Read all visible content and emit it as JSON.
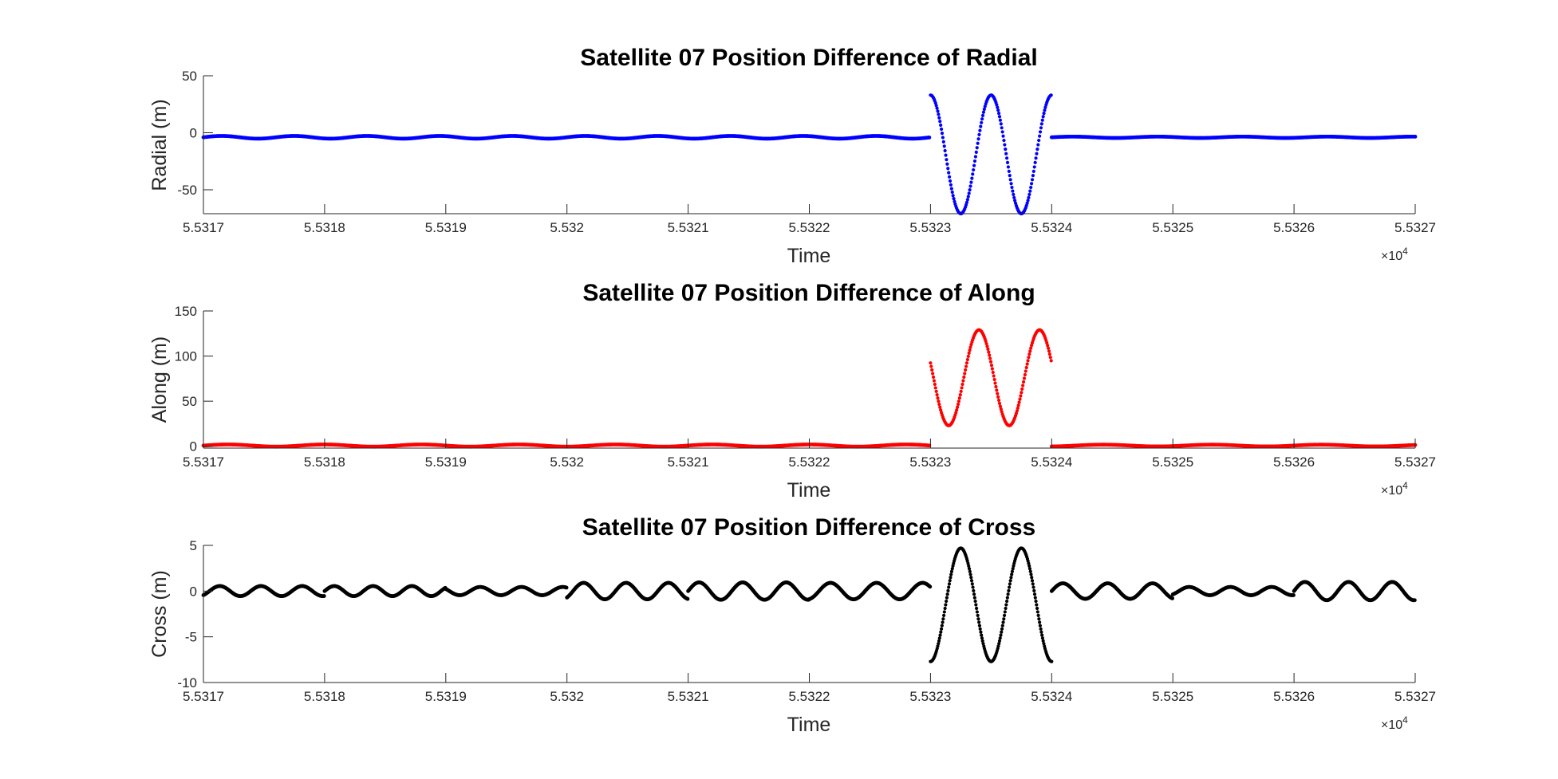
{
  "figure": {
    "background": "#ffffff",
    "axis_color": "#262626"
  },
  "chart_data": [
    {
      "type": "scatter",
      "title": "Satellite 07 Position Difference of Radial",
      "xlabel": "Time",
      "ylabel": "Radial (m)",
      "xlim": [
        55317,
        55327
      ],
      "ylim": [
        -71,
        50
      ],
      "x_tick_values": [
        55317,
        55318,
        55319,
        55320,
        55321,
        55322,
        55323,
        55324,
        55325,
        55326,
        55327
      ],
      "x_tick_labels": [
        "5.5317",
        "5.5318",
        "5.5319",
        "5.532",
        "5.5321",
        "5.5322",
        "5.5323",
        "5.5324",
        "5.5325",
        "5.5326",
        "5.5327"
      ],
      "y_tick_values": [
        -50,
        0,
        50
      ],
      "y_tick_labels": [
        "-50",
        "0",
        "50"
      ],
      "x_exponent_label": "×10",
      "x_exponent_power": "4",
      "color": "#0000ff",
      "series": [
        {
          "name": "before-gap",
          "x_range": [
            55317,
            55323
          ],
          "step": 0.01,
          "shape": "flat",
          "base": -4,
          "amp": 1.2,
          "period": 0.6
        },
        {
          "name": "anomaly",
          "x_range": [
            55323,
            55324
          ],
          "step": 0.006,
          "shape": "cosine",
          "center": -19,
          "amp": 52,
          "period": 0.5,
          "phase_x": 55323
        },
        {
          "name": "after-gap",
          "x_range": [
            55324,
            55327
          ],
          "step": 0.01,
          "shape": "flat",
          "base": -4,
          "amp": 0.6,
          "period": 0.7
        }
      ]
    },
    {
      "type": "scatter",
      "title": "Satellite 07 Position Difference of Along",
      "xlabel": "Time",
      "ylabel": "Along (m)",
      "xlim": [
        55317,
        55327
      ],
      "ylim": [
        -2,
        150
      ],
      "x_tick_values": [
        55317,
        55318,
        55319,
        55320,
        55321,
        55322,
        55323,
        55324,
        55325,
        55326,
        55327
      ],
      "x_tick_labels": [
        "5.5317",
        "5.5318",
        "5.5319",
        "5.532",
        "5.5321",
        "5.5322",
        "5.5323",
        "5.5324",
        "5.5325",
        "5.5326",
        "5.5327"
      ],
      "y_tick_values": [
        0,
        50,
        100,
        150
      ],
      "y_tick_labels": [
        "0",
        "50",
        "100",
        "150"
      ],
      "x_exponent_label": "×10",
      "x_exponent_power": "4",
      "color": "#ff0000",
      "series": [
        {
          "name": "before-gap",
          "x_range": [
            55317,
            55323
          ],
          "step": 0.01,
          "shape": "flat",
          "base": 0.8,
          "amp": 1.2,
          "period": 0.8
        },
        {
          "name": "anomaly",
          "x_range": [
            55323,
            55324
          ],
          "step": 0.006,
          "shape": "cosine-neg",
          "center": 76,
          "amp": 53,
          "period": 0.5,
          "phase_x": 55323.15
        },
        {
          "name": "after-gap",
          "x_range": [
            55324,
            55327
          ],
          "step": 0.01,
          "shape": "flat",
          "base": 0.8,
          "amp": 1.0,
          "period": 0.9
        }
      ]
    },
    {
      "type": "scatter",
      "title": "Satellite 07 Position Difference of Cross",
      "xlabel": "Time",
      "ylabel": "Cross (m)",
      "xlim": [
        55317,
        55327
      ],
      "ylim": [
        -10,
        5
      ],
      "x_tick_values": [
        55317,
        55318,
        55319,
        55320,
        55321,
        55322,
        55323,
        55324,
        55325,
        55326,
        55327
      ],
      "x_tick_labels": [
        "5.5317",
        "5.5318",
        "5.5319",
        "5.532",
        "5.5321",
        "5.5322",
        "5.5323",
        "5.5324",
        "5.5325",
        "5.5326",
        "5.5327"
      ],
      "y_tick_values": [
        -10,
        -5,
        0,
        5
      ],
      "y_tick_labels": [
        "-10",
        "-5",
        "0",
        "5"
      ],
      "x_exponent_label": "×10",
      "x_exponent_power": "4",
      "color": "#000000",
      "series": [
        {
          "name": "seg-1",
          "x_range": [
            55317,
            55318
          ],
          "step": 0.006,
          "shape": "sine",
          "center": 0,
          "amp": 0.55,
          "period": 0.34,
          "phase_x": 55317.05
        },
        {
          "name": "seg-2",
          "x_range": [
            55318,
            55319
          ],
          "step": 0.006,
          "shape": "sine",
          "center": 0,
          "amp": 0.55,
          "period": 0.32,
          "phase_x": 55318.0
        },
        {
          "name": "seg-3",
          "x_range": [
            55319,
            55320
          ],
          "step": 0.006,
          "shape": "sine",
          "center": 0,
          "amp": 0.45,
          "period": 0.34,
          "phase_x": 55319.2
        },
        {
          "name": "seg-4",
          "x_range": [
            55320,
            55321
          ],
          "step": 0.006,
          "shape": "sine",
          "center": 0,
          "amp": 0.9,
          "period": 0.35,
          "phase_x": 55320.05
        },
        {
          "name": "seg-5",
          "x_range": [
            55321,
            55322
          ],
          "step": 0.006,
          "shape": "sine",
          "center": 0,
          "amp": 0.95,
          "period": 0.36,
          "phase_x": 55321.0
        },
        {
          "name": "seg-6",
          "x_range": [
            55322,
            55323
          ],
          "step": 0.006,
          "shape": "sine",
          "center": 0,
          "amp": 0.9,
          "period": 0.38,
          "phase_x": 55322.08
        },
        {
          "name": "anomaly",
          "x_range": [
            55323,
            55324
          ],
          "step": 0.005,
          "shape": "sine",
          "center": -1.5,
          "amp": 6.2,
          "period": 0.5,
          "phase_x": 55323.125
        },
        {
          "name": "seg-8",
          "x_range": [
            55324,
            55325
          ],
          "step": 0.006,
          "shape": "sine",
          "center": 0,
          "amp": 0.85,
          "period": 0.37,
          "phase_x": 55324.0
        },
        {
          "name": "seg-9",
          "x_range": [
            55325,
            55326
          ],
          "step": 0.006,
          "shape": "sine",
          "center": 0,
          "amp": 0.45,
          "period": 0.34,
          "phase_x": 55325.05
        },
        {
          "name": "seg-10",
          "x_range": [
            55326,
            55327
          ],
          "step": 0.006,
          "shape": "sine",
          "center": 0,
          "amp": 1.0,
          "period": 0.36,
          "phase_x": 55326.0
        }
      ]
    }
  ]
}
